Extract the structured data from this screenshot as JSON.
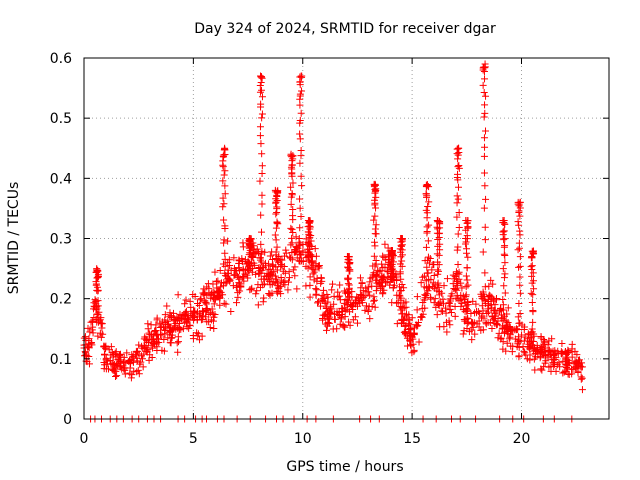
{
  "chart_data": {
    "type": "scatter",
    "title": "Day 324 of 2024, SRMTID for receiver dgar",
    "xlabel": "GPS time / hours",
    "ylabel": "SRMTID / TECUs",
    "xlim": [
      0,
      24
    ],
    "ylim": [
      0,
      0.6
    ],
    "xticks": [
      0,
      5,
      10,
      15,
      20
    ],
    "xtick_labels": [
      "0",
      "5",
      "10",
      "15",
      "20"
    ],
    "yticks": [
      0,
      0.1,
      0.2,
      0.3,
      0.4,
      0.5,
      0.6
    ],
    "ytick_labels": [
      "0",
      "0.1",
      "0.2",
      "0.3",
      "0.4",
      "0.5",
      "0.6"
    ],
    "grid": true,
    "marker": "plus",
    "color": "#ff0000",
    "trend_points": [
      [
        0.0,
        0.12
      ],
      [
        0.3,
        0.13
      ],
      [
        0.5,
        0.18
      ],
      [
        0.7,
        0.16
      ],
      [
        1.0,
        0.1
      ],
      [
        1.5,
        0.09
      ],
      [
        2.0,
        0.09
      ],
      [
        2.5,
        0.1
      ],
      [
        3.0,
        0.13
      ],
      [
        3.5,
        0.14
      ],
      [
        4.0,
        0.15
      ],
      [
        4.5,
        0.16
      ],
      [
        5.0,
        0.17
      ],
      [
        5.5,
        0.19
      ],
      [
        6.0,
        0.2
      ],
      [
        6.5,
        0.23
      ],
      [
        7.0,
        0.24
      ],
      [
        7.5,
        0.26
      ],
      [
        8.0,
        0.25
      ],
      [
        8.5,
        0.24
      ],
      [
        9.0,
        0.25
      ],
      [
        9.5,
        0.27
      ],
      [
        10.0,
        0.27
      ],
      [
        10.5,
        0.25
      ],
      [
        11.0,
        0.18
      ],
      [
        11.5,
        0.17
      ],
      [
        12.0,
        0.19
      ],
      [
        12.5,
        0.2
      ],
      [
        13.0,
        0.21
      ],
      [
        13.5,
        0.24
      ],
      [
        14.0,
        0.25
      ],
      [
        14.5,
        0.18
      ],
      [
        15.0,
        0.13
      ],
      [
        15.5,
        0.2
      ],
      [
        16.0,
        0.23
      ],
      [
        16.5,
        0.17
      ],
      [
        17.0,
        0.22
      ],
      [
        17.5,
        0.17
      ],
      [
        18.0,
        0.17
      ],
      [
        18.5,
        0.2
      ],
      [
        19.0,
        0.16
      ],
      [
        19.5,
        0.14
      ],
      [
        20.0,
        0.13
      ],
      [
        20.5,
        0.12
      ],
      [
        21.0,
        0.11
      ],
      [
        21.5,
        0.1
      ],
      [
        22.0,
        0.1
      ],
      [
        22.5,
        0.09
      ],
      [
        22.8,
        0.08
      ]
    ],
    "spikes": [
      [
        6.4,
        0.45
      ],
      [
        7.6,
        0.3
      ],
      [
        8.1,
        0.57
      ],
      [
        8.8,
        0.38
      ],
      [
        9.5,
        0.44
      ],
      [
        9.9,
        0.57
      ],
      [
        10.3,
        0.33
      ],
      [
        12.1,
        0.27
      ],
      [
        13.3,
        0.39
      ],
      [
        14.1,
        0.28
      ],
      [
        14.5,
        0.3
      ],
      [
        15.7,
        0.39
      ],
      [
        16.2,
        0.33
      ],
      [
        17.1,
        0.45
      ],
      [
        17.5,
        0.33
      ],
      [
        18.3,
        0.59
      ],
      [
        19.2,
        0.33
      ],
      [
        19.9,
        0.36
      ],
      [
        20.5,
        0.28
      ],
      [
        0.6,
        0.25
      ]
    ],
    "zero_points": [
      0.3,
      0.5,
      0.8,
      1.2,
      1.5,
      1.8,
      2.2,
      2.5,
      2.9,
      3.2,
      3.5,
      4.3,
      4.6,
      5.1,
      5.4,
      5.6,
      6.1,
      6.4,
      7.0,
      7.6,
      8.3,
      8.8,
      9.1,
      9.6,
      10.2,
      10.6,
      11.4,
      12.6,
      13.1,
      13.5,
      14.6,
      15.5,
      16.1,
      16.8,
      17.2,
      17.9,
      19.0,
      19.6,
      20.1,
      21.0,
      21.5,
      22.3
    ]
  }
}
